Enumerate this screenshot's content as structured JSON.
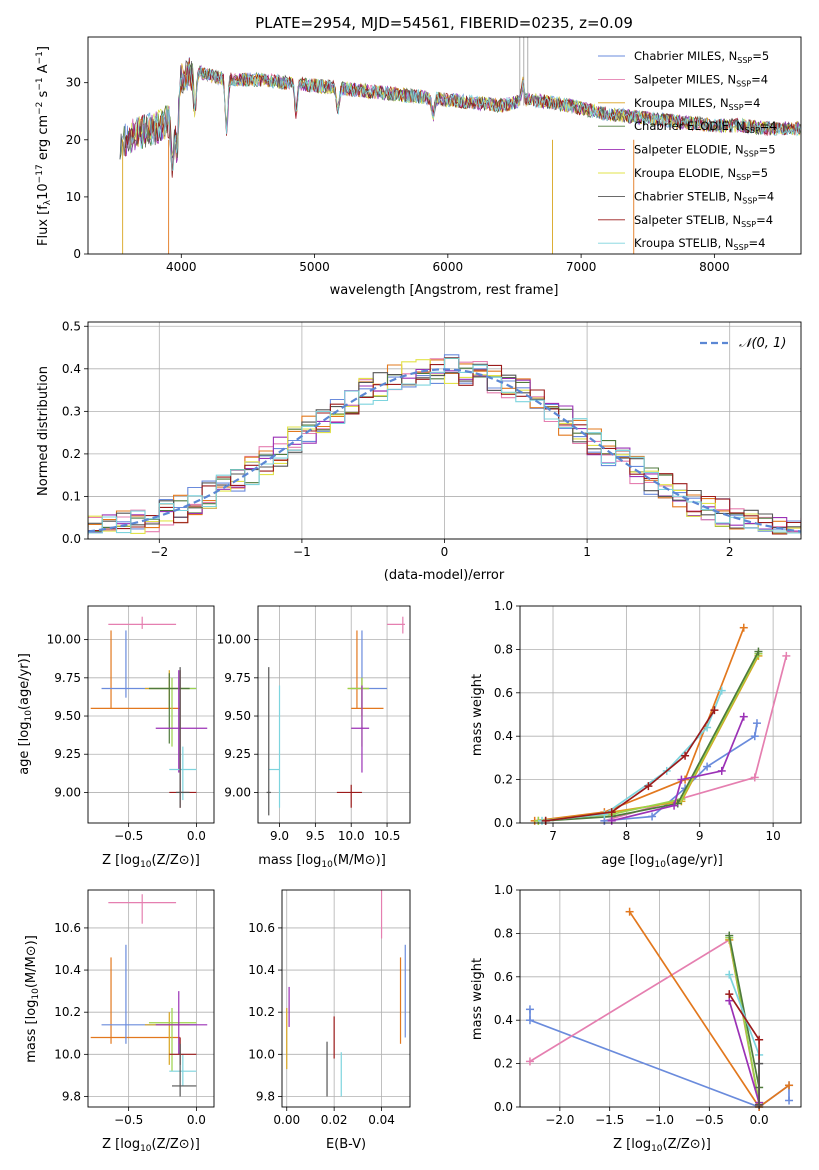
{
  "colors": {
    "chabrier_miles": "#6a8bdc",
    "salpeter_miles": "#e57fb0",
    "kroupa_miles": "#d9a520",
    "chabrier_elodie": "#4f7a3c",
    "salpeter_elodie": "#9b31b6",
    "kroupa_elodie": "#e2e34a",
    "chabrier_stelib": "#555555",
    "salpeter_stelib": "#9b1b1b",
    "kroupa_stelib": "#7dd4de",
    "orange_model": "#e2781e",
    "green_model": "#9bd24a",
    "gauss": "#5b87d4"
  },
  "chart_data": [
    {
      "type": "line",
      "panel": "spectrum",
      "title": "PLATE=2954, MJD=54561, FIBERID=0235, z=0.09",
      "xlabel": "wavelength [Angstrom, rest frame]",
      "ylabel": "Flux [f_λ 10^-17 erg cm^-2 s^-1 A^-1]",
      "xlim": [
        3300,
        8650
      ],
      "ylim": [
        0,
        38
      ],
      "xticks": [
        "4000",
        "5000",
        "6000",
        "7000",
        "8000"
      ],
      "yticks": [
        "0",
        "10",
        "20",
        "30"
      ],
      "legend_position": "top-right",
      "series": [
        {
          "name": "Chabrier MILES, N_SSP=5",
          "label_main": "Chabrier MILES, N",
          "label_sub": "SSP",
          "label_end": "=5",
          "color_key": "chabrier_miles"
        },
        {
          "name": "Salpeter MILES, N_SSP=4",
          "label_main": "Salpeter MILES, N",
          "label_sub": "SSP",
          "label_end": "=4",
          "color_key": "salpeter_miles"
        },
        {
          "name": "Kroupa MILES, N_SSP=4",
          "label_main": "Kroupa MILES, N",
          "label_sub": "SSP",
          "label_end": "=4",
          "color_key": "kroupa_miles"
        },
        {
          "name": "Chabrier ELODIE, N_SSP=4",
          "label_main": "Chabrier ELODIE, N",
          "label_sub": "SSP",
          "label_end": "=4",
          "color_key": "chabrier_elodie"
        },
        {
          "name": "Salpeter ELODIE, N_SSP=5",
          "label_main": "Salpeter ELODIE, N",
          "label_sub": "SSP",
          "label_end": "=5",
          "color_key": "salpeter_elodie"
        },
        {
          "name": "Kroupa ELODIE, N_SSP=5",
          "label_main": "Kroupa ELODIE, N",
          "label_sub": "SSP",
          "label_end": "=5",
          "color_key": "kroupa_elodie"
        },
        {
          "name": "Chabrier STELIB, N_SSP=4",
          "label_main": "Chabrier STELIB, N",
          "label_sub": "SSP",
          "label_end": "=4",
          "color_key": "chabrier_stelib"
        },
        {
          "name": "Salpeter STELIB, N_SSP=4",
          "label_main": "Salpeter STELIB, N",
          "label_sub": "SSP",
          "label_end": "=4",
          "color_key": "salpeter_stelib"
        },
        {
          "name": "Kroupa STELIB, N_SSP=4",
          "label_main": "Kroupa STELIB, N",
          "label_sub": "SSP",
          "label_end": "=4",
          "color_key": "kroupa_stelib"
        }
      ],
      "continuum": {
        "x": [
          3500,
          3650,
          3800,
          3950,
          4000,
          4100,
          4250,
          4400,
          4600,
          4800,
          5000,
          5200,
          5400,
          5600,
          5800,
          6000,
          6200,
          6400,
          6600,
          6800,
          7000,
          7200,
          7400,
          7600,
          7800,
          8000,
          8200,
          8400,
          8650
        ],
        "y": [
          19,
          21,
          22,
          24,
          31,
          32,
          31,
          30.5,
          30.5,
          30,
          29.5,
          29,
          28.5,
          28,
          27.5,
          27,
          26.5,
          26,
          27,
          26.5,
          25.5,
          24.5,
          24,
          23.5,
          23,
          22.5,
          22.5,
          22,
          22
        ]
      }
    },
    {
      "type": "line",
      "panel": "residuals",
      "xlabel": "(data-model)/error",
      "ylabel": "Normed distribution",
      "xlim": [
        -2.5,
        2.5
      ],
      "ylim": [
        0,
        0.51
      ],
      "xticks": [
        "−2",
        "−1",
        "0",
        "1",
        "2"
      ],
      "yticks": [
        "0.0",
        "0.1",
        "0.2",
        "0.3",
        "0.4",
        "0.5"
      ],
      "reference_curve": "𝒩(0, 1)",
      "bin_width": 0.1,
      "n_histograms": 9
    },
    {
      "type": "scatter",
      "panel": "age-vs-Z",
      "xlabel_main": "Z [log",
      "xlabel_sub": "10",
      "xlabel_end": "(Z/Z⊙)]",
      "ylabel_main": "age  [log",
      "ylabel_sub": "10",
      "ylabel_end": "(age/yr)]",
      "xlim": [
        -0.8,
        0.13
      ],
      "ylim": [
        8.8,
        10.22
      ],
      "xticks": [
        "−0.5",
        "0.0"
      ],
      "yticks": [
        "9.00",
        "9.25",
        "9.50",
        "9.75",
        "10.00"
      ],
      "points": [
        {
          "color_key": "salpeter_miles",
          "x": -0.4,
          "y": 10.1,
          "xlo": -0.65,
          "xhi": -0.15,
          "ylo": 10.07,
          "yhi": 10.15
        },
        {
          "color_key": "orange_model",
          "x": -0.63,
          "y": 9.55,
          "xlo": -0.78,
          "xhi": -0.12,
          "ylo": 9.55,
          "yhi": 10.06
        },
        {
          "color_key": "chabrier_miles",
          "x": -0.52,
          "y": 9.68,
          "xlo": -0.7,
          "xhi": 0.0,
          "ylo": 9.62,
          "yhi": 10.06
        },
        {
          "color_key": "kroupa_miles",
          "x": -0.2,
          "y": 9.68,
          "xlo": -0.38,
          "xhi": -0.05,
          "ylo": 9.55,
          "yhi": 9.8
        },
        {
          "color_key": "green_model",
          "x": -0.18,
          "y": 9.68,
          "xlo": -0.35,
          "xhi": 0.0,
          "ylo": 9.3,
          "yhi": 9.75
        },
        {
          "color_key": "chabrier_elodie",
          "x": -0.2,
          "y": 9.68,
          "xlo": -0.35,
          "xhi": -0.05,
          "ylo": 9.32,
          "yhi": 9.78
        },
        {
          "color_key": "salpeter_elodie",
          "x": -0.13,
          "y": 9.42,
          "xlo": -0.3,
          "xhi": 0.08,
          "ylo": 9.13,
          "yhi": 9.8
        },
        {
          "color_key": "kroupa_stelib",
          "x": -0.1,
          "y": 9.15,
          "xlo": -0.2,
          "xhi": 0.0,
          "ylo": 8.95,
          "yhi": 9.3
        },
        {
          "color_key": "salpeter_stelib",
          "x": -0.12,
          "y": 9.0,
          "xlo": -0.2,
          "xhi": 0.0,
          "ylo": 8.9,
          "yhi": 9.8
        },
        {
          "color_key": "chabrier_stelib",
          "x": -0.12,
          "y": 9.0,
          "xlo": -0.15,
          "xhi": -0.05,
          "ylo": 8.9,
          "yhi": 9.82
        }
      ]
    },
    {
      "type": "scatter",
      "panel": "age-vs-mass",
      "xlabel_main": "mass [log",
      "xlabel_sub": "10",
      "xlabel_end": "(M/M⊙)]",
      "xlim": [
        8.7,
        10.82
      ],
      "ylim": [
        8.8,
        10.22
      ],
      "xticks": [
        "9.0",
        "9.5",
        "10.0",
        "10.5"
      ],
      "yticks": [
        "9.00",
        "9.25",
        "9.50",
        "9.75",
        "10.00"
      ],
      "points": [
        {
          "color_key": "salpeter_miles",
          "x": 10.72,
          "y": 10.1,
          "xlo": 10.5,
          "xhi": 10.75,
          "ylo": 10.04,
          "yhi": 10.15
        },
        {
          "color_key": "orange_model",
          "x": 10.08,
          "y": 9.55,
          "xlo": 10.0,
          "xhi": 10.45,
          "ylo": 9.55,
          "yhi": 10.06
        },
        {
          "color_key": "chabrier_miles",
          "x": 10.15,
          "y": 9.68,
          "xlo": 10.0,
          "xhi": 10.5,
          "ylo": 9.55,
          "yhi": 10.06
        },
        {
          "color_key": "kroupa_miles",
          "x": 10.15,
          "y": 9.68,
          "xlo": 9.95,
          "xhi": 10.25,
          "ylo": 9.5,
          "yhi": 9.75
        },
        {
          "color_key": "green_model",
          "x": 10.15,
          "y": 9.68,
          "xlo": 9.95,
          "xhi": 10.25,
          "ylo": 9.3,
          "yhi": 9.75
        },
        {
          "color_key": "salpeter_elodie",
          "x": 10.15,
          "y": 9.42,
          "xlo": 10.0,
          "xhi": 10.25,
          "ylo": 9.13,
          "yhi": 9.7
        },
        {
          "color_key": "kroupa_stelib",
          "x": 9.0,
          "y": 9.15,
          "xlo": 8.85,
          "xhi": 9.0,
          "ylo": 8.9,
          "yhi": 9.7
        },
        {
          "color_key": "chabrier_stelib",
          "x": 8.85,
          "y": 9.0,
          "xlo": 8.82,
          "xhi": 8.88,
          "ylo": 8.85,
          "yhi": 9.82
        },
        {
          "color_key": "salpeter_stelib",
          "x": 10.0,
          "y": 9.0,
          "xlo": 9.8,
          "xhi": 10.15,
          "ylo": 8.9,
          "yhi": 9.05
        }
      ]
    },
    {
      "type": "line",
      "panel": "massweight-vs-age",
      "xlabel_main": "age  [log",
      "xlabel_sub": "10",
      "xlabel_end": "(age/yr)]",
      "ylabel": "mass weight",
      "xlim": [
        6.55,
        10.38
      ],
      "ylim": [
        0,
        1
      ],
      "xticks": [
        "7",
        "8",
        "9",
        "10"
      ],
      "yticks": [
        "0.0",
        "0.2",
        "0.4",
        "0.6",
        "0.8",
        "1.0"
      ],
      "series": [
        {
          "color_key": "salpeter_miles",
          "x": [
            7.7,
            9.75,
            10.18
          ],
          "y": [
            0.01,
            0.21,
            0.77
          ]
        },
        {
          "color_key": "orange_model",
          "x": [
            6.75,
            7.7,
            8.8,
            9.6
          ],
          "y": [
            0.01,
            0.05,
            0.2,
            0.9
          ]
        },
        {
          "color_key": "chabrier_miles",
          "x": [
            7.7,
            8.35,
            8.8,
            9.1,
            9.75,
            9.78
          ],
          "y": [
            0.01,
            0.03,
            0.16,
            0.26,
            0.4,
            0.46
          ]
        },
        {
          "color_key": "kroupa_miles",
          "x": [
            6.8,
            7.8,
            8.75,
            9.8
          ],
          "y": [
            0.01,
            0.05,
            0.1,
            0.77
          ]
        },
        {
          "color_key": "green_model",
          "x": [
            6.8,
            7.8,
            8.75,
            9.8
          ],
          "y": [
            0.01,
            0.04,
            0.11,
            0.78
          ]
        },
        {
          "color_key": "chabrier_elodie",
          "x": [
            6.9,
            7.8,
            8.7,
            9.8
          ],
          "y": [
            0.01,
            0.03,
            0.09,
            0.79
          ]
        },
        {
          "color_key": "salpeter_elodie",
          "x": [
            7.8,
            8.65,
            8.75,
            9.3,
            9.6
          ],
          "y": [
            0.01,
            0.08,
            0.2,
            0.24,
            0.49
          ]
        },
        {
          "color_key": "kroupa_stelib",
          "x": [
            6.85,
            7.7,
            8.55,
            9.1,
            9.3
          ],
          "y": [
            0.01,
            0.04,
            0.24,
            0.44,
            0.61
          ]
        },
        {
          "color_key": "salpeter_stelib",
          "x": [
            6.9,
            7.8,
            8.3,
            8.8,
            9.2
          ],
          "y": [
            0.01,
            0.05,
            0.17,
            0.31,
            0.52
          ]
        }
      ]
    },
    {
      "type": "scatter",
      "panel": "mass-vs-Z",
      "xlabel_main": "Z [log",
      "xlabel_sub": "10",
      "xlabel_end": "(Z/Z⊙)]",
      "ylabel_main": "mass [log",
      "ylabel_sub": "10",
      "ylabel_end": "(M/M⊙)]",
      "xlim": [
        -0.8,
        0.13
      ],
      "ylim": [
        9.75,
        10.78
      ],
      "xticks": [
        "−0.5",
        "0.0"
      ],
      "yticks": [
        "9.8",
        "10.0",
        "10.2",
        "10.4",
        "10.6"
      ],
      "points": [
        {
          "color_key": "salpeter_miles",
          "x": -0.4,
          "y": 10.72,
          "xlo": -0.65,
          "xhi": -0.15,
          "ylo": 10.62,
          "yhi": 10.76
        },
        {
          "color_key": "orange_model",
          "x": -0.63,
          "y": 10.08,
          "xlo": -0.78,
          "xhi": -0.12,
          "ylo": 10.05,
          "yhi": 10.46
        },
        {
          "color_key": "chabrier_miles",
          "x": -0.52,
          "y": 10.14,
          "xlo": -0.7,
          "xhi": 0.0,
          "ylo": 10.05,
          "yhi": 10.52
        },
        {
          "color_key": "kroupa_miles",
          "x": -0.2,
          "y": 10.14,
          "xlo": -0.38,
          "xhi": -0.05,
          "ylo": 9.95,
          "yhi": 10.2
        },
        {
          "color_key": "green_model",
          "x": -0.18,
          "y": 10.15,
          "xlo": -0.35,
          "xhi": 0.0,
          "ylo": 9.92,
          "yhi": 10.22
        },
        {
          "color_key": "salpeter_elodie",
          "x": -0.13,
          "y": 10.14,
          "xlo": -0.3,
          "xhi": 0.08,
          "ylo": 10.0,
          "yhi": 10.3
        },
        {
          "color_key": "kroupa_stelib",
          "x": -0.1,
          "y": 9.92,
          "xlo": -0.2,
          "xhi": 0.0,
          "ylo": 9.85,
          "yhi": 10.0
        },
        {
          "color_key": "salpeter_stelib",
          "x": -0.12,
          "y": 10.0,
          "xlo": -0.2,
          "xhi": 0.0,
          "ylo": 9.95,
          "yhi": 10.08
        },
        {
          "color_key": "chabrier_stelib",
          "x": -0.12,
          "y": 9.85,
          "xlo": -0.18,
          "xhi": 0.0,
          "ylo": 9.8,
          "yhi": 10.05
        }
      ]
    },
    {
      "type": "scatter",
      "panel": "mass-vs-EBV",
      "xlabel": "E(B-V)",
      "xlim": [
        -0.002,
        0.052
      ],
      "ylim": [
        9.75,
        10.78
      ],
      "xticks": [
        "0.00",
        "0.02",
        "0.04"
      ],
      "yticks": [
        "9.8",
        "10.0",
        "10.2",
        "10.4",
        "10.6"
      ],
      "points": [
        {
          "color_key": "salpeter_miles",
          "x": 0.04,
          "y": 10.72,
          "ylo": 10.55,
          "yhi": 10.78
        },
        {
          "color_key": "orange_model",
          "x": 0.048,
          "y": 10.2,
          "ylo": 10.05,
          "yhi": 10.46
        },
        {
          "color_key": "chabrier_miles",
          "x": 0.05,
          "y": 10.2,
          "ylo": 10.08,
          "yhi": 10.52
        },
        {
          "color_key": "salpeter_elodie",
          "x": 0.001,
          "y": 10.2,
          "ylo": 10.13,
          "yhi": 10.32
        },
        {
          "color_key": "kroupa_miles",
          "x": 0.0,
          "y": 10.1,
          "ylo": 9.93,
          "yhi": 10.22
        },
        {
          "color_key": "chabrier_stelib",
          "x": 0.017,
          "y": 9.9,
          "ylo": 9.8,
          "yhi": 10.06
        },
        {
          "color_key": "salpeter_stelib",
          "x": 0.02,
          "y": 10.1,
          "ylo": 9.98,
          "yhi": 10.18
        },
        {
          "color_key": "kroupa_stelib",
          "x": 0.023,
          "y": 9.92,
          "ylo": 9.8,
          "yhi": 10.01
        }
      ]
    },
    {
      "type": "line",
      "panel": "massweight-vs-Z",
      "xlabel_main": "Z [log",
      "xlabel_sub": "10",
      "xlabel_end": "(Z/Z⊙)]",
      "ylabel": "mass weight",
      "xlim": [
        -2.4,
        0.42
      ],
      "ylim": [
        0,
        1
      ],
      "xticks": [
        "−2.0",
        "−1.5",
        "−1.0",
        "−0.5",
        "0.0"
      ],
      "yticks": [
        "0.0",
        "0.2",
        "0.4",
        "0.6",
        "0.8",
        "1.0"
      ],
      "series": [
        {
          "color_key": "chabrier_miles",
          "x": [
            -2.3,
            -2.3,
            0.0,
            0.3,
            0.3
          ],
          "y": [
            0.45,
            0.4,
            0.0,
            0.1,
            0.03
          ]
        },
        {
          "color_key": "salpeter_miles",
          "x": [
            -2.3,
            -0.3,
            0.0
          ],
          "y": [
            0.21,
            0.77,
            0.01
          ]
        },
        {
          "color_key": "orange_model",
          "x": [
            -1.3,
            0.0,
            0.3
          ],
          "y": [
            0.9,
            0.0,
            0.1
          ]
        },
        {
          "color_key": "kroupa_miles",
          "x": [
            -0.3,
            0.0
          ],
          "y": [
            0.77,
            0.02
          ]
        },
        {
          "color_key": "green_model",
          "x": [
            -0.3,
            0.0
          ],
          "y": [
            0.78,
            0.02
          ]
        },
        {
          "color_key": "chabrier_elodie",
          "x": [
            -0.3,
            0.0
          ],
          "y": [
            0.79,
            0.09
          ]
        },
        {
          "color_key": "salpeter_elodie",
          "x": [
            -0.3,
            0.0
          ],
          "y": [
            0.49,
            0.02
          ]
        },
        {
          "color_key": "kroupa_stelib",
          "x": [
            -0.3,
            0.0,
            0.0
          ],
          "y": [
            0.61,
            0.24,
            0.01
          ]
        },
        {
          "color_key": "salpeter_stelib",
          "x": [
            -0.3,
            0.0,
            0.0
          ],
          "y": [
            0.52,
            0.31,
            0.01
          ]
        },
        {
          "color_key": "chabrier_stelib",
          "x": [
            0.0,
            0.0
          ],
          "y": [
            0.2,
            0.01
          ]
        }
      ]
    }
  ]
}
